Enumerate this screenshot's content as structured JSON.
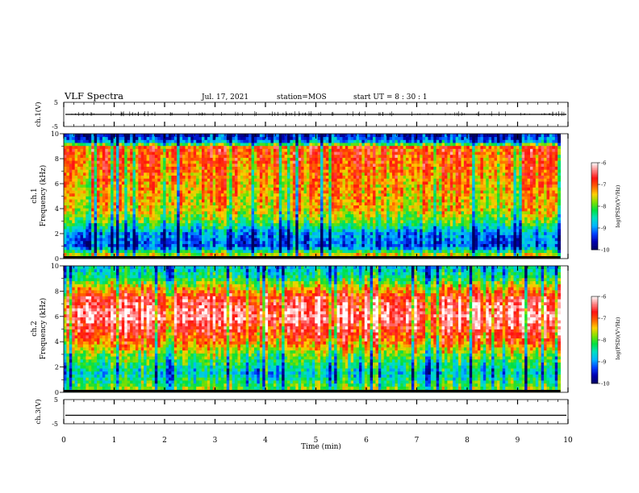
{
  "header": {
    "title": "VLF Spectra",
    "date": "Jul. 17, 2021",
    "station": "station=MOS",
    "start_ut": "start UT =  8 : 30 : 1"
  },
  "colorbar": {
    "label": "log(PSD)(V²/Hz)",
    "ticks": [
      "-6",
      "-7",
      "-8",
      "-9",
      "-10"
    ],
    "colors": [
      "#000060",
      "#0000b0",
      "#0040ff",
      "#00b4ff",
      "#00e0c0",
      "#00e040",
      "#80e000",
      "#ffd000",
      "#ff6000",
      "#ff1010",
      "#ff8080",
      "#ffffff"
    ]
  },
  "chart_data": [
    {
      "type": "line",
      "panel": "ch1-waveform",
      "ylabel": "ch.1(V)",
      "ylim": [
        -5,
        5
      ],
      "ytick_labels": [
        "5",
        "-5"
      ],
      "x_range_min": [
        0,
        10
      ],
      "note_level": 0
    },
    {
      "type": "heatmap",
      "panel": "ch1-spectrogram",
      "ylabel_channel": "ch.1",
      "ylabel": "Frequency (kHz)",
      "ylim": [
        0,
        10
      ],
      "ytick_labels": [
        "0",
        "2",
        "4",
        "6",
        "8",
        "10"
      ],
      "x_range_min": [
        0,
        9.85
      ],
      "zlim": [
        -10,
        -6
      ],
      "band_profile_log_psd": [
        {
          "freq_khz": 0.3,
          "level": -7.5
        },
        {
          "freq_khz": 1.0,
          "level": -9.3
        },
        {
          "freq_khz": 2.0,
          "level": -9.0
        },
        {
          "freq_khz": 3.0,
          "level": -8.0
        },
        {
          "freq_khz": 4.0,
          "level": -7.5
        },
        {
          "freq_khz": 6.0,
          "level": -7.3
        },
        {
          "freq_khz": 8.0,
          "level": -7.0
        },
        {
          "freq_khz": 9.0,
          "level": -7.0
        },
        {
          "freq_khz": 9.3,
          "level": -8.8
        },
        {
          "freq_khz": 9.8,
          "level": -9.5
        }
      ]
    },
    {
      "type": "heatmap",
      "panel": "ch2-spectrogram",
      "ylabel_channel": "ch.2",
      "ylabel": "Frequency (kHz)",
      "ylim": [
        0,
        10
      ],
      "ytick_labels": [
        "0",
        "2",
        "4",
        "6",
        "8",
        "10"
      ],
      "x_range_min": [
        0,
        9.85
      ],
      "zlim": [
        -10,
        -6
      ],
      "band_profile_log_psd": [
        {
          "freq_khz": 0.3,
          "level": -7.8
        },
        {
          "freq_khz": 1.5,
          "level": -8.6
        },
        {
          "freq_khz": 3.0,
          "level": -7.8
        },
        {
          "freq_khz": 4.0,
          "level": -7.0
        },
        {
          "freq_khz": 6.0,
          "level": -6.2
        },
        {
          "freq_khz": 7.5,
          "level": -6.6
        },
        {
          "freq_khz": 8.5,
          "level": -7.6
        },
        {
          "freq_khz": 9.2,
          "level": -8.3
        },
        {
          "freq_khz": 9.8,
          "level": -8.6
        }
      ]
    },
    {
      "type": "line",
      "panel": "ch3-waveform",
      "ylabel": "ch.3(V)",
      "ylim": [
        -5,
        5
      ],
      "ytick_labels": [
        "5",
        "-5"
      ],
      "x_range_min": [
        0,
        10
      ],
      "note_level": -1.5
    }
  ],
  "xaxis": {
    "label": "Time (min)",
    "range": [
      0,
      10
    ],
    "tick_labels": [
      "0",
      "1",
      "2",
      "3",
      "4",
      "5",
      "6",
      "7",
      "8",
      "9",
      "10"
    ]
  }
}
